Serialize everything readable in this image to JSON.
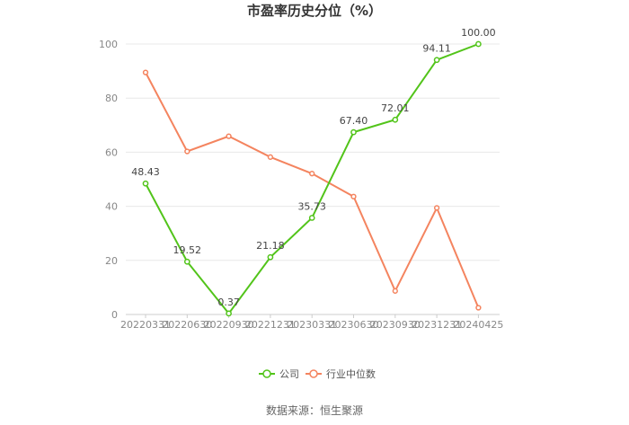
{
  "chart_data": {
    "type": "line",
    "title": "市盈率历史分位（%）",
    "categories": [
      "20220331",
      "20220630",
      "20220930",
      "20221231",
      "20230331",
      "20230630",
      "20230930",
      "20231231",
      "20240425"
    ],
    "ylim": [
      0,
      100
    ],
    "yticks": [
      0,
      20,
      40,
      60,
      80,
      100
    ],
    "grid": true,
    "legend_position": "bottom",
    "series": [
      {
        "name": "公司",
        "color": "#52c41a",
        "values": [
          48.43,
          19.52,
          0.37,
          21.18,
          35.73,
          67.4,
          72.01,
          94.11,
          100.0
        ],
        "labels": [
          "48.43",
          "19.52",
          "0.37",
          "21.18",
          "35.73",
          "67.40",
          "72.01",
          "94.11",
          "100.00"
        ]
      },
      {
        "name": "行业中位数",
        "color": "#f4845f",
        "values": [
          89.5,
          60.3,
          65.9,
          58.2,
          52.1,
          43.6,
          8.7,
          39.4,
          2.5
        ],
        "labels": []
      }
    ]
  },
  "source": "数据来源：恒生聚源"
}
